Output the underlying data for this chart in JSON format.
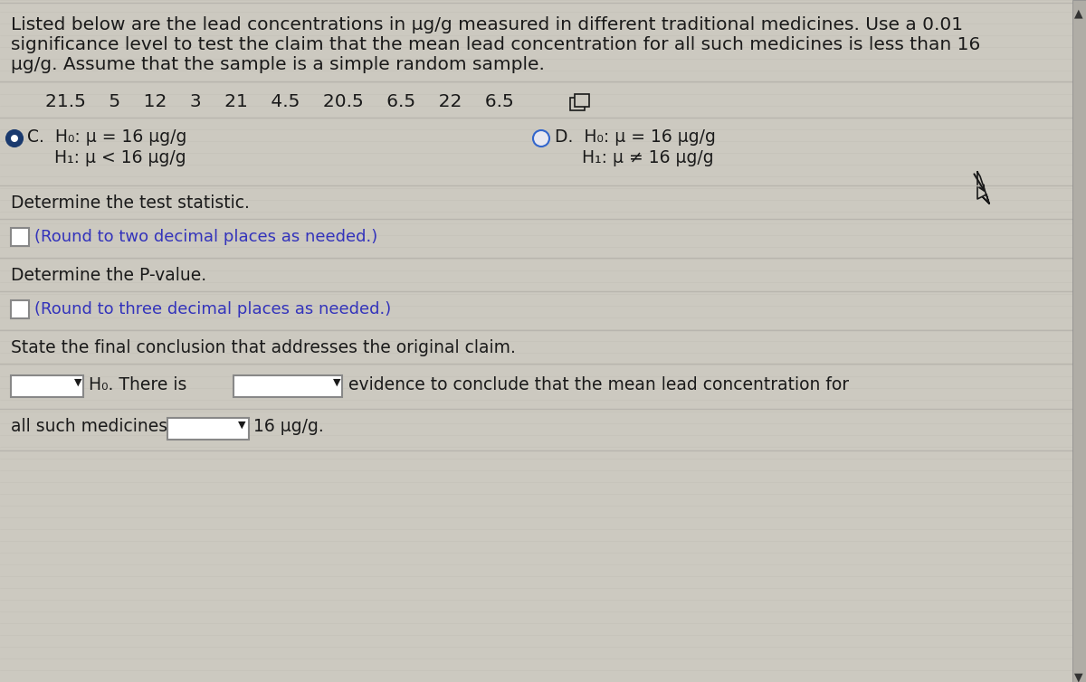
{
  "background_color": "#ccc9c0",
  "title_text_line1": "Listed below are the lead concentrations in μg/g measured in different traditional medicines. Use a 0.01",
  "title_text_line2": "significance level to test the claim that the mean lead concentration for all such medicines is less than 16",
  "title_text_line3": "μg/g. Assume that the sample is a simple random sample.",
  "data_values": "21.5    5    12    3    21    4.5    20.5    6.5    22    6.5",
  "option_C_line1": "C.  H₀: μ = 16 μg/g",
  "option_C_line2": "     H₁: μ < 16 μg/g",
  "option_D_line1": "D.  H₀: μ = 16 μg/g",
  "option_D_line2": "     H₁: μ ≠ 16 μg/g",
  "test_stat_label": "Determine the test statistic.",
  "test_stat_hint": "(Round to two decimal places as needed.)",
  "pvalue_label": "Determine the P-value.",
  "pvalue_hint": "(Round to three decimal places as needed.)",
  "conclusion_label": "State the final conclusion that addresses the original claim.",
  "conclusion_line1_mid": "H₀. There is",
  "conclusion_line1_post": "evidence to conclude that the mean lead concentration for",
  "conclusion_line2_pre": "all such medicines is",
  "conclusion_line2_post": "16 μg/g.",
  "text_color": "#1a1a1a",
  "hint_color": "#3333bb",
  "separator_color": "#b8b5ae",
  "box_bg": "#ffffff",
  "box_border": "#888888",
  "radio_selected_fill": "#1a3a6e",
  "radio_selected_edge": "#1a3a6e",
  "radio_unselected_fill": "#e8e8f0",
  "radio_unselected_edge": "#3366cc",
  "scrollbar_color": "#b0ada6",
  "scrollbar_edge": "#888888",
  "font_size_title": 14.5,
  "font_size_data": 14.5,
  "font_size_options": 13.5,
  "font_size_body": 13.5,
  "font_size_hint": 13.0,
  "fig_width": 12.0,
  "fig_height": 7.54,
  "dpi": 100
}
